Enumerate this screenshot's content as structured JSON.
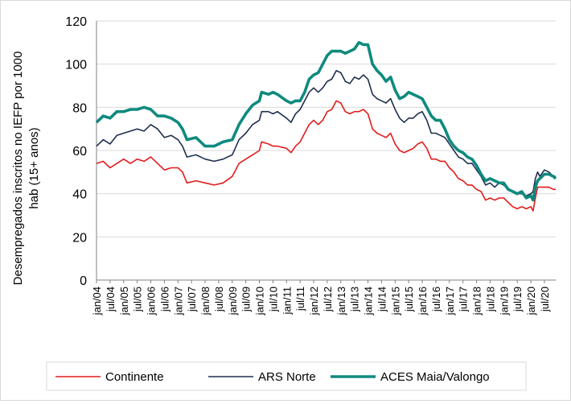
{
  "chart_data": {
    "type": "line",
    "ylabel": [
      "Desempregados inscritos no IEFP por 1000",
      "hab (15+ anos)"
    ],
    "ylim": [
      0,
      120
    ],
    "yticks": [
      0,
      20,
      40,
      60,
      80,
      100,
      120
    ],
    "grid": "horizontal",
    "legend_position": "bottom",
    "x_start": "jan/04",
    "x_end": "dez/20",
    "x_tick_labels": [
      "jan/04",
      "jul/04",
      "jan/05",
      "jul/05",
      "jan/06",
      "jul/06",
      "jan/07",
      "jul/07",
      "jan/08",
      "jul/08",
      "jan/09",
      "jul/09",
      "jan/10",
      "jul/10",
      "jan/11",
      "jul/11",
      "jan/12",
      "jul/12",
      "jan/13",
      "jul/13",
      "jan/14",
      "jul/14",
      "jan/15",
      "jul/15",
      "jan/16",
      "jul/16",
      "jan/17",
      "jul/17",
      "jan/18",
      "jul/18",
      "jan/19",
      "jul/19",
      "jan/20",
      "jul/20"
    ],
    "x_tick_months": [
      0,
      6,
      12,
      18,
      24,
      30,
      36,
      42,
      48,
      54,
      60,
      66,
      72,
      78,
      84,
      90,
      96,
      102,
      108,
      114,
      120,
      126,
      132,
      138,
      144,
      150,
      156,
      162,
      168,
      174,
      180,
      186,
      192,
      198
    ],
    "series": [
      {
        "name": "Continente",
        "color": "#e31b1b",
        "width": 1.6,
        "points": [
          [
            0,
            54
          ],
          [
            3,
            55
          ],
          [
            6,
            52
          ],
          [
            9,
            54
          ],
          [
            12,
            56
          ],
          [
            15,
            54
          ],
          [
            18,
            56
          ],
          [
            21,
            55
          ],
          [
            24,
            57
          ],
          [
            27,
            54
          ],
          [
            30,
            51
          ],
          [
            33,
            52
          ],
          [
            36,
            52
          ],
          [
            38,
            50
          ],
          [
            40,
            45
          ],
          [
            44,
            46
          ],
          [
            48,
            45
          ],
          [
            52,
            44
          ],
          [
            56,
            45
          ],
          [
            60,
            48
          ],
          [
            63,
            54
          ],
          [
            66,
            56
          ],
          [
            69,
            58
          ],
          [
            72,
            60
          ],
          [
            73,
            64
          ],
          [
            76,
            63
          ],
          [
            78,
            62
          ],
          [
            80,
            62
          ],
          [
            84,
            61
          ],
          [
            86,
            59
          ],
          [
            88,
            62
          ],
          [
            90,
            64
          ],
          [
            92,
            68
          ],
          [
            94,
            72
          ],
          [
            96,
            74
          ],
          [
            98,
            72
          ],
          [
            100,
            74
          ],
          [
            102,
            78
          ],
          [
            104,
            79
          ],
          [
            106,
            83
          ],
          [
            108,
            82
          ],
          [
            110,
            78
          ],
          [
            112,
            77
          ],
          [
            114,
            78
          ],
          [
            116,
            78
          ],
          [
            118,
            79
          ],
          [
            120,
            77
          ],
          [
            122,
            70
          ],
          [
            124,
            68
          ],
          [
            126,
            67
          ],
          [
            128,
            66
          ],
          [
            130,
            68
          ],
          [
            132,
            63
          ],
          [
            134,
            60
          ],
          [
            136,
            59
          ],
          [
            138,
            60
          ],
          [
            140,
            61
          ],
          [
            142,
            63
          ],
          [
            144,
            64
          ],
          [
            146,
            61
          ],
          [
            148,
            56
          ],
          [
            150,
            56
          ],
          [
            152,
            55
          ],
          [
            154,
            55
          ],
          [
            156,
            52
          ],
          [
            158,
            50
          ],
          [
            160,
            47
          ],
          [
            162,
            46
          ],
          [
            164,
            44
          ],
          [
            166,
            44
          ],
          [
            168,
            42
          ],
          [
            170,
            41
          ],
          [
            172,
            37
          ],
          [
            174,
            38
          ],
          [
            176,
            37
          ],
          [
            178,
            38
          ],
          [
            180,
            38
          ],
          [
            182,
            36
          ],
          [
            184,
            34
          ],
          [
            186,
            33
          ],
          [
            188,
            34
          ],
          [
            190,
            33
          ],
          [
            192,
            34
          ],
          [
            193,
            32
          ],
          [
            194,
            38
          ],
          [
            195,
            43
          ],
          [
            196,
            43
          ],
          [
            198,
            43
          ],
          [
            200,
            43
          ],
          [
            202,
            42
          ],
          [
            203,
            42
          ]
        ]
      },
      {
        "name": "ARS Norte",
        "color": "#1f2f4f",
        "width": 1.6,
        "points": [
          [
            0,
            62
          ],
          [
            3,
            65
          ],
          [
            6,
            63
          ],
          [
            9,
            67
          ],
          [
            12,
            68
          ],
          [
            15,
            69
          ],
          [
            18,
            70
          ],
          [
            21,
            69
          ],
          [
            24,
            72
          ],
          [
            27,
            70
          ],
          [
            30,
            66
          ],
          [
            33,
            67
          ],
          [
            36,
            65
          ],
          [
            38,
            62
          ],
          [
            40,
            57
          ],
          [
            44,
            58
          ],
          [
            48,
            56
          ],
          [
            52,
            55
          ],
          [
            56,
            56
          ],
          [
            60,
            58
          ],
          [
            63,
            65
          ],
          [
            66,
            68
          ],
          [
            69,
            72
          ],
          [
            72,
            74
          ],
          [
            73,
            78
          ],
          [
            76,
            78
          ],
          [
            78,
            77
          ],
          [
            80,
            78
          ],
          [
            84,
            75
          ],
          [
            86,
            73
          ],
          [
            88,
            77
          ],
          [
            90,
            79
          ],
          [
            92,
            83
          ],
          [
            94,
            87
          ],
          [
            96,
            89
          ],
          [
            98,
            87
          ],
          [
            100,
            89
          ],
          [
            102,
            92
          ],
          [
            104,
            93
          ],
          [
            106,
            97
          ],
          [
            108,
            96
          ],
          [
            110,
            92
          ],
          [
            112,
            91
          ],
          [
            114,
            94
          ],
          [
            116,
            93
          ],
          [
            118,
            95
          ],
          [
            120,
            93
          ],
          [
            122,
            86
          ],
          [
            124,
            84
          ],
          [
            126,
            83
          ],
          [
            128,
            82
          ],
          [
            130,
            84
          ],
          [
            132,
            79
          ],
          [
            134,
            75
          ],
          [
            136,
            73
          ],
          [
            138,
            75
          ],
          [
            140,
            75
          ],
          [
            142,
            77
          ],
          [
            144,
            78
          ],
          [
            146,
            74
          ],
          [
            148,
            68
          ],
          [
            150,
            68
          ],
          [
            152,
            67
          ],
          [
            154,
            66
          ],
          [
            156,
            63
          ],
          [
            158,
            60
          ],
          [
            160,
            57
          ],
          [
            162,
            56
          ],
          [
            164,
            54
          ],
          [
            166,
            54
          ],
          [
            168,
            51
          ],
          [
            170,
            48
          ],
          [
            172,
            44
          ],
          [
            174,
            45
          ],
          [
            176,
            43
          ],
          [
            178,
            45
          ],
          [
            180,
            44
          ],
          [
            182,
            42
          ],
          [
            184,
            41
          ],
          [
            186,
            40
          ],
          [
            188,
            40
          ],
          [
            190,
            39
          ],
          [
            192,
            40
          ],
          [
            193,
            41
          ],
          [
            194,
            47
          ],
          [
            195,
            50
          ],
          [
            196,
            48
          ],
          [
            198,
            51
          ],
          [
            200,
            50
          ],
          [
            202,
            48
          ],
          [
            203,
            48
          ]
        ]
      },
      {
        "name": "ACES Maia/Valongo",
        "color": "#0f8a7e",
        "width": 3.6,
        "points": [
          [
            0,
            73
          ],
          [
            3,
            76
          ],
          [
            6,
            75
          ],
          [
            9,
            78
          ],
          [
            12,
            78
          ],
          [
            15,
            79
          ],
          [
            18,
            79
          ],
          [
            21,
            80
          ],
          [
            24,
            79
          ],
          [
            27,
            76
          ],
          [
            30,
            76
          ],
          [
            33,
            75
          ],
          [
            36,
            73
          ],
          [
            38,
            70
          ],
          [
            40,
            65
          ],
          [
            44,
            66
          ],
          [
            48,
            62
          ],
          [
            52,
            62
          ],
          [
            56,
            64
          ],
          [
            60,
            65
          ],
          [
            63,
            72
          ],
          [
            66,
            77
          ],
          [
            69,
            81
          ],
          [
            72,
            83
          ],
          [
            73,
            87
          ],
          [
            76,
            86
          ],
          [
            78,
            87
          ],
          [
            80,
            86
          ],
          [
            84,
            83
          ],
          [
            86,
            82
          ],
          [
            88,
            83
          ],
          [
            90,
            83
          ],
          [
            92,
            87
          ],
          [
            94,
            93
          ],
          [
            96,
            95
          ],
          [
            98,
            96
          ],
          [
            100,
            100
          ],
          [
            102,
            104
          ],
          [
            104,
            106
          ],
          [
            106,
            106
          ],
          [
            108,
            106
          ],
          [
            110,
            105
          ],
          [
            112,
            106
          ],
          [
            114,
            107
          ],
          [
            116,
            110
          ],
          [
            118,
            109
          ],
          [
            120,
            109
          ],
          [
            122,
            100
          ],
          [
            124,
            97
          ],
          [
            126,
            95
          ],
          [
            128,
            92
          ],
          [
            130,
            94
          ],
          [
            132,
            88
          ],
          [
            134,
            84
          ],
          [
            136,
            85
          ],
          [
            138,
            87
          ],
          [
            140,
            86
          ],
          [
            142,
            85
          ],
          [
            144,
            84
          ],
          [
            146,
            80
          ],
          [
            148,
            76
          ],
          [
            150,
            74
          ],
          [
            152,
            74
          ],
          [
            154,
            70
          ],
          [
            156,
            65
          ],
          [
            158,
            62
          ],
          [
            160,
            60
          ],
          [
            162,
            59
          ],
          [
            164,
            57
          ],
          [
            166,
            56
          ],
          [
            168,
            53
          ],
          [
            170,
            49
          ],
          [
            172,
            46
          ],
          [
            174,
            47
          ],
          [
            176,
            46
          ],
          [
            178,
            45
          ],
          [
            180,
            45
          ],
          [
            182,
            42
          ],
          [
            184,
            41
          ],
          [
            186,
            40
          ],
          [
            188,
            41
          ],
          [
            190,
            38
          ],
          [
            192,
            39
          ],
          [
            193,
            37
          ],
          [
            194,
            43
          ],
          [
            195,
            46
          ],
          [
            196,
            47
          ],
          [
            198,
            49
          ],
          [
            200,
            49
          ],
          [
            202,
            48
          ],
          [
            203,
            47
          ]
        ]
      }
    ]
  }
}
